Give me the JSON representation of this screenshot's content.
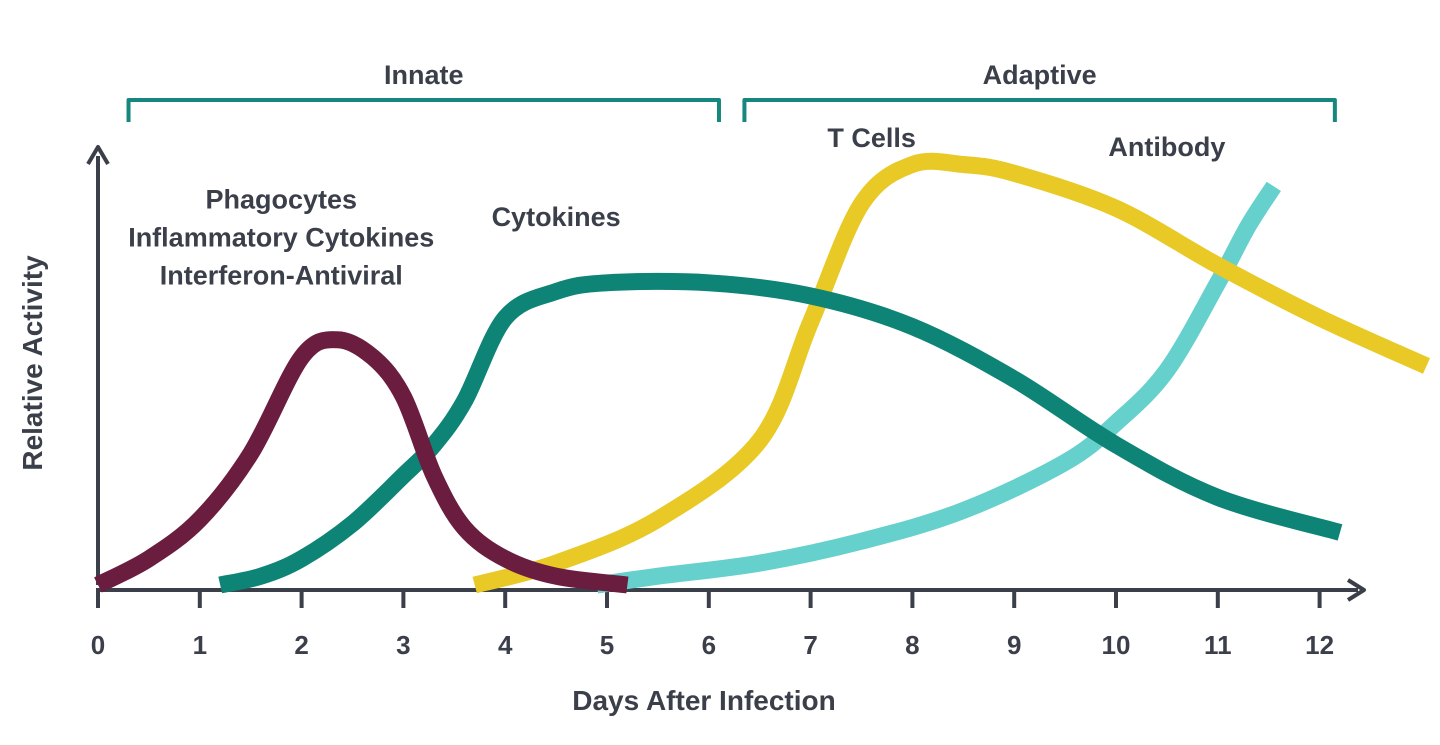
{
  "chart_data": {
    "type": "line",
    "xlabel": "Days After Infection",
    "ylabel": "Relative Activity",
    "xlim": [
      0,
      12
    ],
    "ylim": [
      0,
      1
    ],
    "x_ticks": [
      "0",
      "1",
      "2",
      "3",
      "4",
      "5",
      "6",
      "7",
      "8",
      "9",
      "10",
      "11",
      "12"
    ],
    "grid": false,
    "phases": [
      {
        "label": "Innate",
        "start": 0.3,
        "end": 6.1
      },
      {
        "label": "Adaptive",
        "start": 6.35,
        "end": 12.15
      }
    ],
    "annotations": [
      {
        "lines": [
          "Phagocytes",
          "Inflammatory Cytokines",
          "Interferon-Antiviral"
        ],
        "x": 1.8,
        "y": 0.86
      },
      {
        "lines": [
          "Cytokines"
        ],
        "x": 4.5,
        "y": 0.82
      },
      {
        "lines": [
          "T Cells"
        ],
        "x": 7.6,
        "y": 1.0
      },
      {
        "lines": [
          "Antibody"
        ],
        "x": 10.5,
        "y": 0.98
      }
    ],
    "series": [
      {
        "color": "#6b1d3f",
        "x": [
          0,
          0.5,
          1,
          1.5,
          2,
          2.35,
          2.7,
          3,
          3.3,
          3.6,
          4,
          4.5,
          5.2
        ],
        "y": [
          0,
          0.06,
          0.15,
          0.3,
          0.52,
          0.56,
          0.52,
          0.43,
          0.25,
          0.13,
          0.06,
          0.02,
          0
        ]
      },
      {
        "color": "#0e8477",
        "x": [
          1.2,
          1.6,
          2,
          2.5,
          3,
          3.3,
          3.6,
          4,
          4.5,
          5,
          6,
          7,
          8,
          9,
          10,
          11,
          12.2
        ],
        "y": [
          0,
          0.02,
          0.06,
          0.14,
          0.25,
          0.32,
          0.42,
          0.61,
          0.67,
          0.69,
          0.69,
          0.66,
          0.59,
          0.47,
          0.32,
          0.2,
          0.12
        ]
      },
      {
        "color": "#e9c926",
        "x": [
          3.7,
          4.5,
          5.5,
          6.5,
          7,
          7.5,
          8,
          8.5,
          9,
          10,
          11,
          12,
          13.05
        ],
        "y": [
          0,
          0.05,
          0.15,
          0.33,
          0.6,
          0.87,
          0.96,
          0.96,
          0.94,
          0.86,
          0.73,
          0.61,
          0.5
        ]
      },
      {
        "color": "#65d0cc",
        "x": [
          4.9,
          5.5,
          6.5,
          7.5,
          8.5,
          9.5,
          10,
          10.5,
          11,
          11.3,
          11.55
        ],
        "y": [
          0,
          0.02,
          0.05,
          0.1,
          0.17,
          0.28,
          0.37,
          0.49,
          0.69,
          0.82,
          0.91
        ]
      }
    ]
  }
}
